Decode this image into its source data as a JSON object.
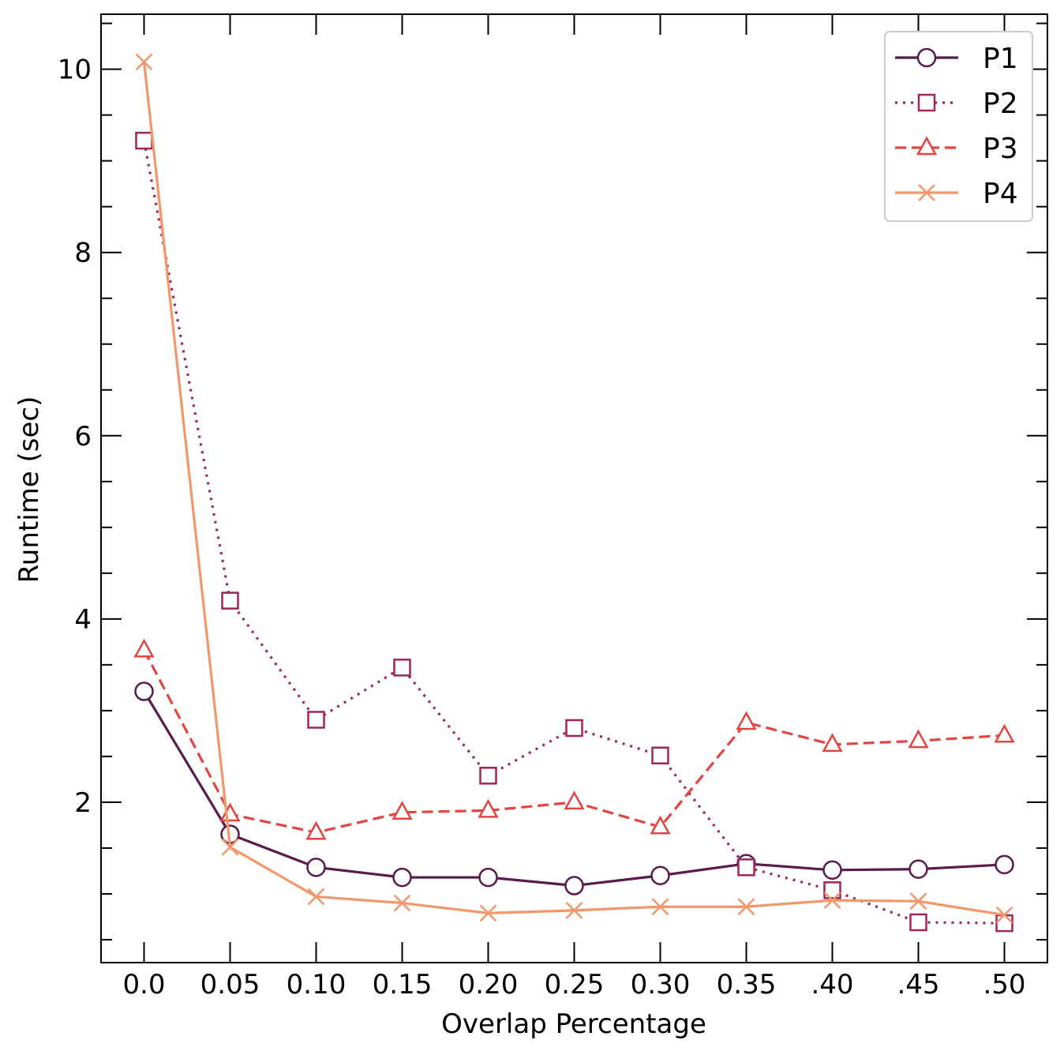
{
  "chart_data": {
    "type": "line",
    "xlabel": "Overlap Percentage",
    "ylabel": "Runtime (sec)",
    "categories": [
      "0.0",
      "0.05",
      "0.10",
      "0.15",
      "0.20",
      "0.25",
      "0.30",
      "0.35",
      ".40",
      ".45",
      ".50"
    ],
    "x": [
      0.0,
      0.05,
      0.1,
      0.15,
      0.2,
      0.25,
      0.3,
      0.35,
      0.4,
      0.45,
      0.5
    ],
    "xlim": [
      -0.025,
      0.525
    ],
    "ylim": [
      0.25,
      10.6
    ],
    "yticks": [
      2,
      4,
      6,
      8,
      10
    ],
    "y_minor_step": 0.5,
    "legend_position": "top-right",
    "grid": false,
    "series": [
      {
        "name": "P1",
        "color": "#5a1a4c",
        "marker": "circle",
        "linestyle": "solid",
        "values": [
          3.21,
          1.65,
          1.29,
          1.18,
          1.18,
          1.09,
          1.2,
          1.33,
          1.26,
          1.27,
          1.32
        ]
      },
      {
        "name": "P2",
        "color": "#a1245c",
        "marker": "square",
        "linestyle": "dotted",
        "values": [
          9.22,
          4.2,
          2.9,
          3.47,
          2.29,
          2.81,
          2.51,
          1.29,
          1.04,
          0.69,
          0.68
        ]
      },
      {
        "name": "P3",
        "color": "#e44440",
        "marker": "triangle",
        "linestyle": "dashed",
        "values": [
          3.66,
          1.87,
          1.67,
          1.89,
          1.91,
          2.0,
          1.73,
          2.87,
          2.63,
          2.67,
          2.73
        ]
      },
      {
        "name": "P4",
        "color": "#f4966a",
        "marker": "x",
        "linestyle": "solid",
        "values": [
          10.08,
          1.51,
          0.97,
          0.9,
          0.79,
          0.82,
          0.86,
          0.86,
          0.93,
          0.92,
          0.77
        ]
      }
    ]
  }
}
